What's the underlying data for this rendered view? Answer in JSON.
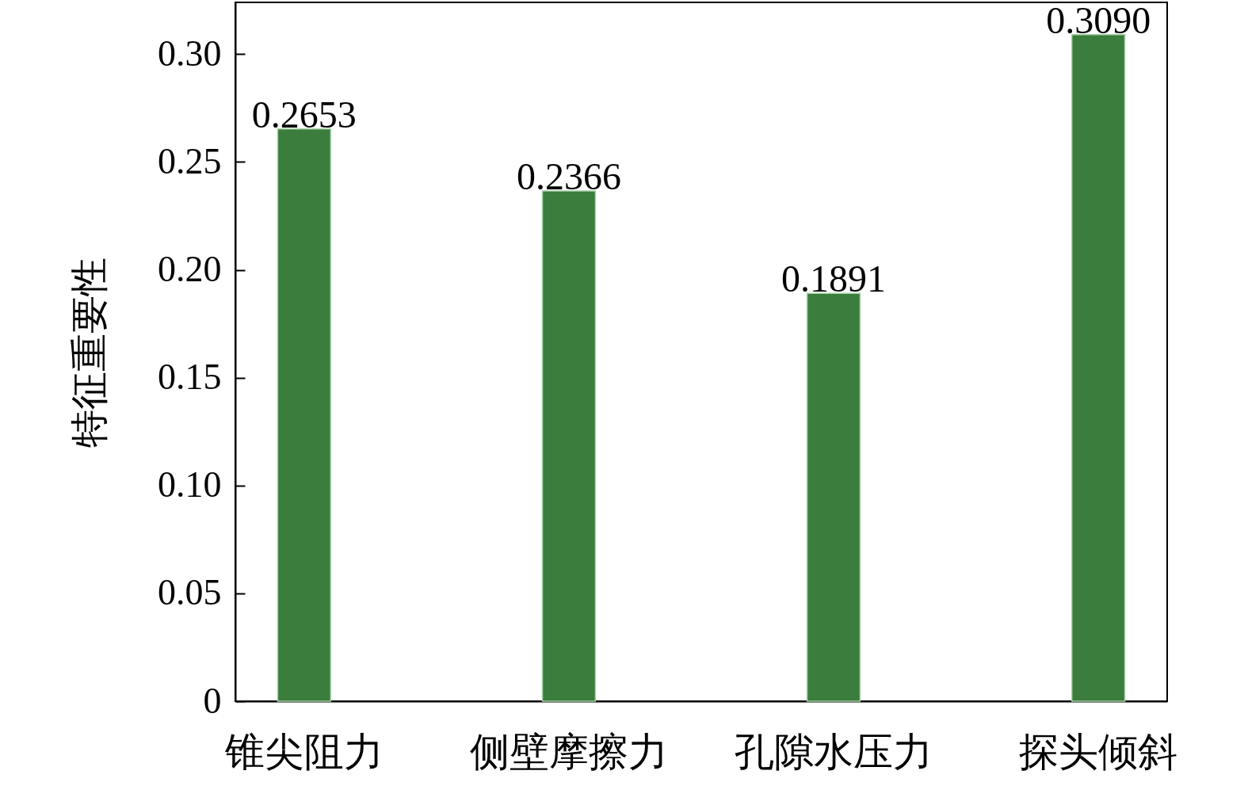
{
  "chart_data": {
    "type": "bar",
    "ylabel": "特征重要性",
    "categories": [
      "锥尖阻力",
      "侧壁摩擦力",
      "孔隙水压力",
      "探头倾斜"
    ],
    "values": [
      0.2653,
      0.2366,
      0.1891,
      0.309
    ],
    "value_labels": [
      "0.2653",
      "0.2366",
      "0.1891",
      "0.3090"
    ],
    "color": "#3a7d3c",
    "ylim": [
      0,
      0.324
    ],
    "yticks": [
      {
        "value": 0,
        "label": "0"
      },
      {
        "value": 0.05,
        "label": "0.05"
      },
      {
        "value": 0.1,
        "label": "0.10"
      },
      {
        "value": 0.15,
        "label": "0.15"
      },
      {
        "value": 0.2,
        "label": "0.20"
      },
      {
        "value": 0.25,
        "label": "0.25"
      },
      {
        "value": 0.3,
        "label": "0.30"
      }
    ],
    "grid": false
  }
}
